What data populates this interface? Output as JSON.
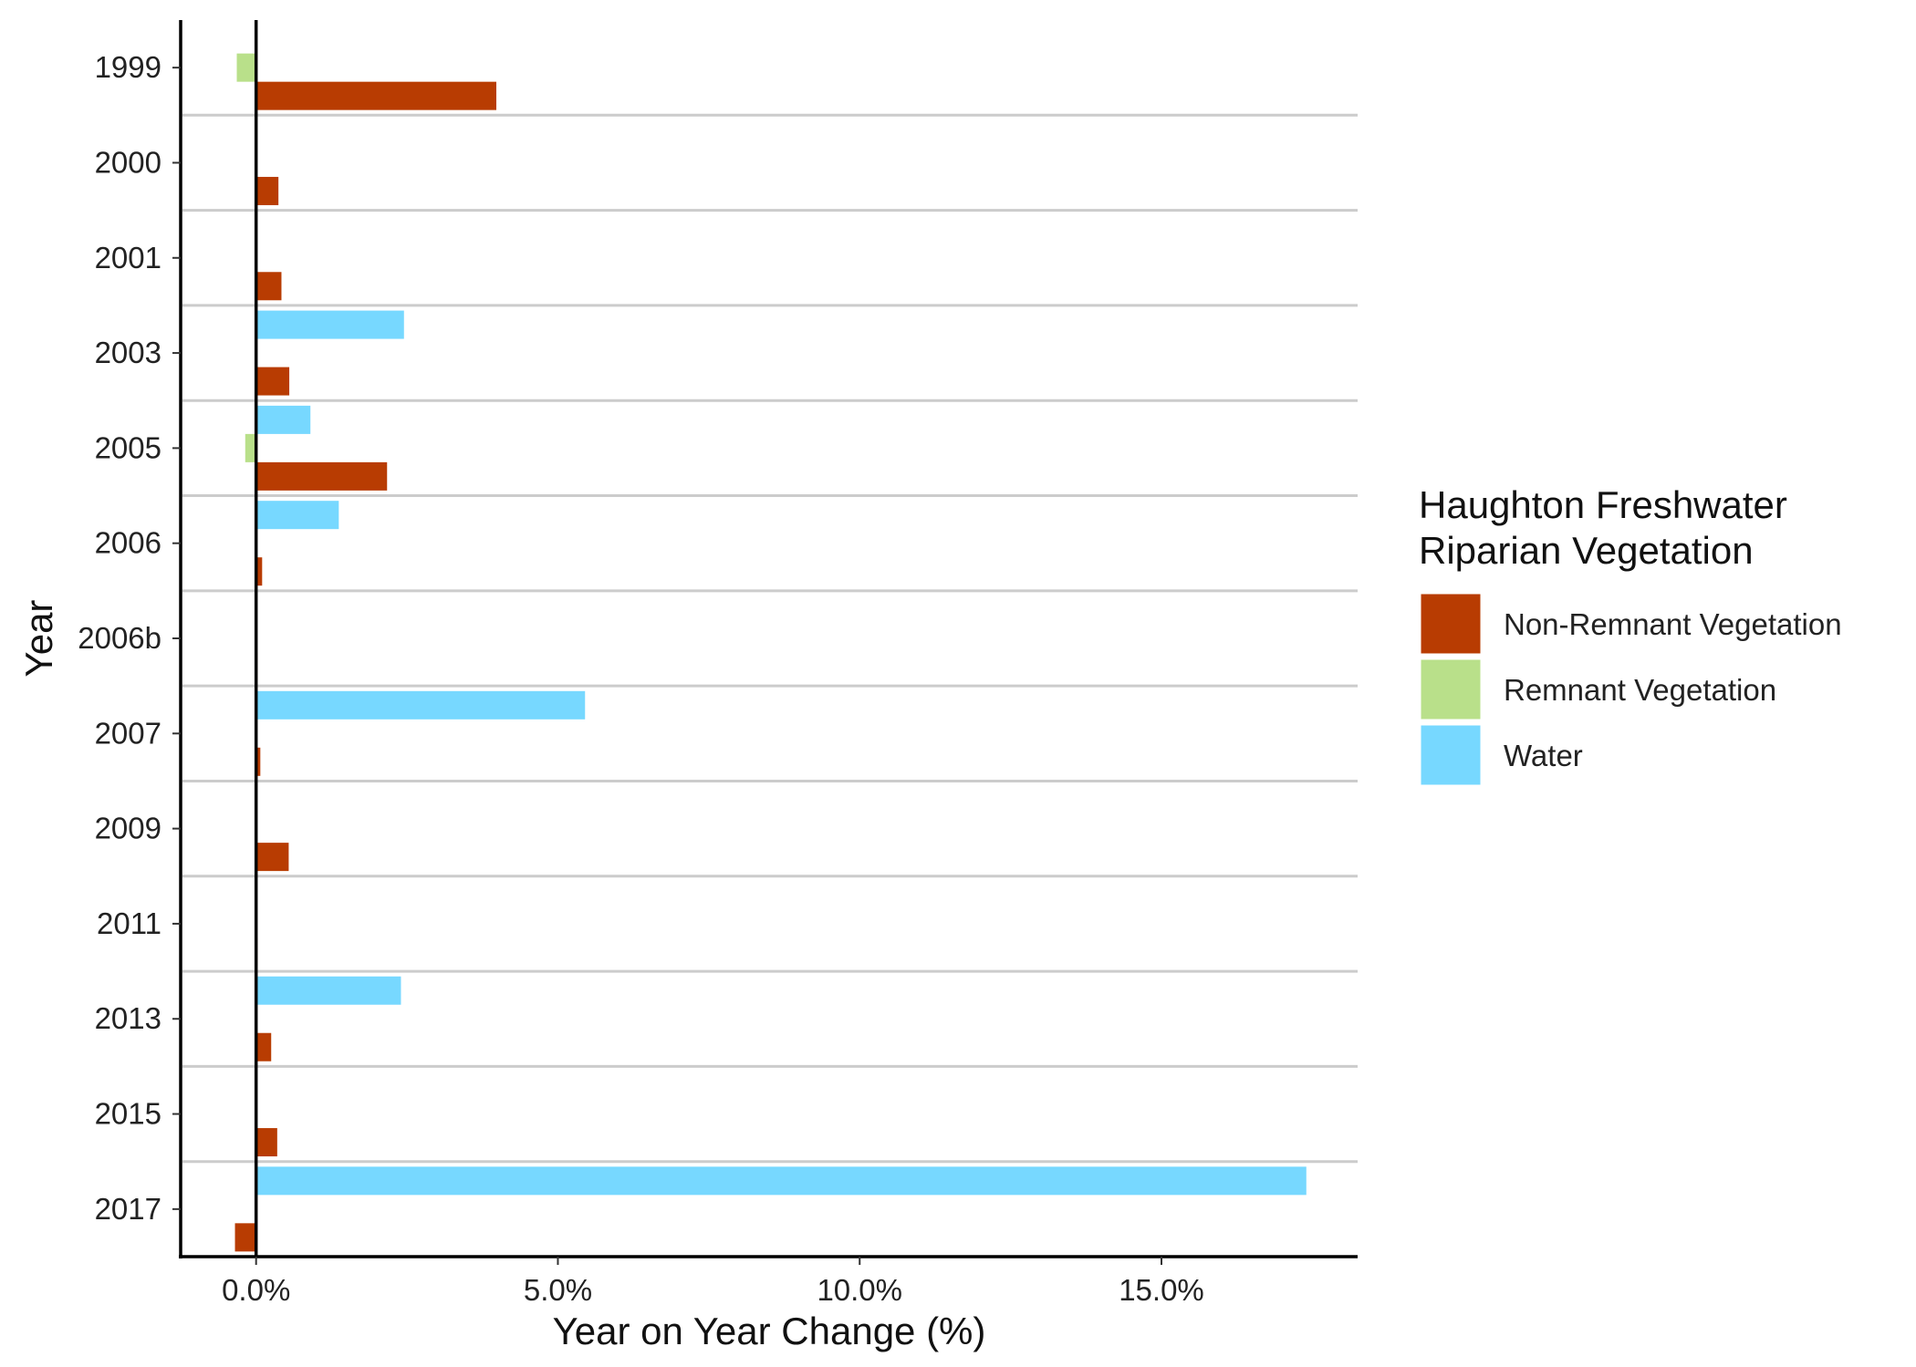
{
  "chart_data": {
    "type": "bar",
    "orientation": "horizontal",
    "xlabel": "Year on Year Change (%)",
    "ylabel": "Year",
    "xlim": [
      -1.25,
      18.25
    ],
    "x_ticks": [
      0,
      5,
      10,
      15
    ],
    "x_tick_labels": [
      "0.0%",
      "5.0%",
      "10.0%",
      "15.0%"
    ],
    "categories": [
      "1999",
      "2000",
      "2001",
      "2003",
      "2005",
      "2006",
      "2006b",
      "2007",
      "2009",
      "2011",
      "2013",
      "2015",
      "2017"
    ],
    "series": [
      {
        "name": "Water",
        "color": "#77D8FF",
        "values": [
          null,
          null,
          null,
          2.45,
          0.9,
          1.37,
          null,
          5.45,
          null,
          null,
          2.4,
          null,
          17.4
        ]
      },
      {
        "name": "Remnant Vegetation",
        "color": "#B9E08A",
        "values": [
          -0.32,
          null,
          null,
          -0.02,
          -0.18,
          null,
          null,
          null,
          -0.02,
          null,
          null,
          null,
          null
        ]
      },
      {
        "name": "Non-Remnant Vegetation",
        "color": "#B83C02",
        "values": [
          3.98,
          0.37,
          0.42,
          0.55,
          2.17,
          0.1,
          0.01,
          0.07,
          0.54,
          0.02,
          0.25,
          0.35,
          -0.35
        ]
      }
    ],
    "grid": "horizontal separators between year groups",
    "legend": {
      "title": "Haughton Freshwater\nRiparian Vegetation",
      "title_lines": [
        "Haughton Freshwater",
        "Riparian Vegetation"
      ],
      "position": "right",
      "entries": [
        {
          "label": "Non-Remnant Vegetation",
          "color": "#B83C02"
        },
        {
          "label": "Remnant Vegetation",
          "color": "#B9E08A"
        },
        {
          "label": "Water",
          "color": "#77D8FF"
        }
      ]
    }
  }
}
